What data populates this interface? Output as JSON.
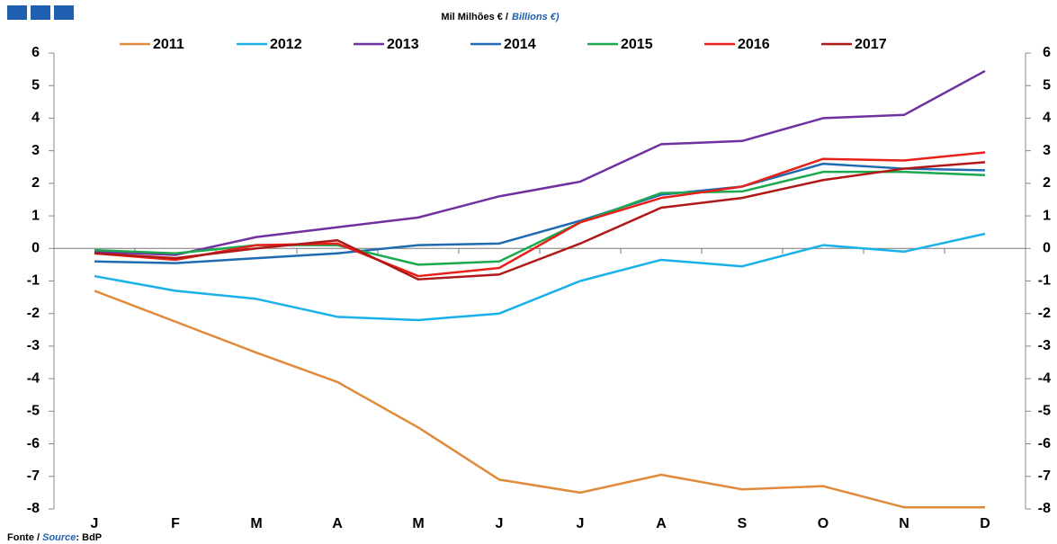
{
  "chart_data": {
    "type": "line",
    "title": "Mil Milhões € /",
    "title_en": "Billions €)",
    "source": {
      "label_pt": "Fonte /",
      "label_en": "Source",
      "text": ": BdP"
    },
    "categories": [
      "J",
      "F",
      "M",
      "A",
      "M",
      "J",
      "J",
      "A",
      "S",
      "O",
      "N",
      "D"
    ],
    "series": [
      {
        "name": "2011",
        "color": "#e08a3c",
        "values": [
          -1.3,
          -2.25,
          -3.2,
          -4.1,
          -5.5,
          -7.1,
          -7.5,
          -6.95,
          -7.4,
          -7.3,
          -7.95,
          -7.95
        ]
      },
      {
        "name": "2012",
        "color": "#1ab0e8",
        "values": [
          -0.85,
          -1.3,
          -1.55,
          -2.1,
          -2.2,
          -2.0,
          -1.0,
          -0.35,
          -0.55,
          0.1,
          -0.1,
          0.45
        ]
      },
      {
        "name": "2013",
        "color": "#7030a0",
        "values": [
          -0.1,
          -0.2,
          0.35,
          0.65,
          0.95,
          1.6,
          2.05,
          3.2,
          3.3,
          4.0,
          4.1,
          5.45
        ]
      },
      {
        "name": "2014",
        "color": "#1f6ab0",
        "values": [
          -0.4,
          -0.45,
          -0.3,
          -0.15,
          0.1,
          0.15,
          0.85,
          1.65,
          1.9,
          2.6,
          2.45,
          2.4
        ]
      },
      {
        "name": "2015",
        "color": "#1ba84e",
        "values": [
          -0.05,
          -0.15,
          0.1,
          0.1,
          -0.5,
          -0.4,
          0.8,
          1.7,
          1.75,
          2.35,
          2.35,
          2.25
        ]
      },
      {
        "name": "2016",
        "color": "#e8201a",
        "values": [
          -0.15,
          -0.35,
          0.1,
          0.15,
          -0.85,
          -0.6,
          0.8,
          1.55,
          1.9,
          2.75,
          2.7,
          2.95
        ]
      },
      {
        "name": "2017",
        "color": "#b01818",
        "values": [
          -0.15,
          -0.3,
          0.0,
          0.25,
          -0.95,
          -0.8,
          0.15,
          1.25,
          1.55,
          2.1,
          2.45,
          2.65
        ]
      }
    ],
    "ylim": [
      -8,
      6
    ],
    "yticks": [
      -8,
      -7,
      -6,
      -5,
      -4,
      -3,
      -2,
      -1,
      0,
      1,
      2,
      3,
      4,
      5,
      6
    ],
    "y2lim": [
      -8,
      6
    ],
    "y2ticks": [
      -8,
      -7,
      -6,
      -5,
      -4,
      -3,
      -2,
      -1,
      0,
      1,
      2,
      3,
      4,
      5,
      6
    ],
    "grid": false,
    "legend": "top"
  }
}
